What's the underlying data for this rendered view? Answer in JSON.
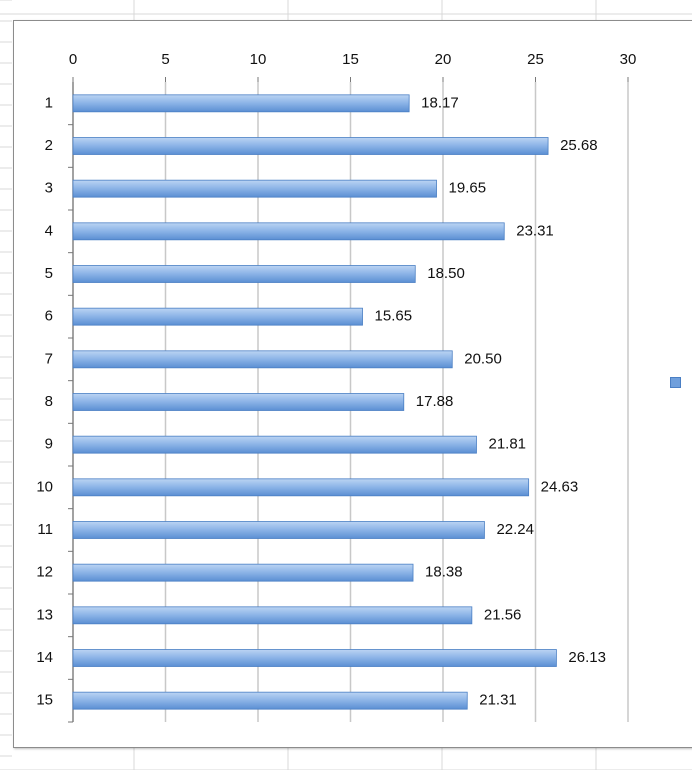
{
  "chart_data": {
    "type": "bar",
    "orientation": "horizontal",
    "categories": [
      "1",
      "2",
      "3",
      "4",
      "5",
      "6",
      "7",
      "8",
      "9",
      "10",
      "11",
      "12",
      "13",
      "14",
      "15"
    ],
    "values": [
      18.17,
      25.68,
      19.65,
      23.31,
      18.5,
      15.65,
      20.5,
      17.88,
      21.81,
      24.63,
      22.24,
      18.38,
      21.56,
      26.13,
      21.31
    ],
    "data_labels": [
      "18.17",
      "25.68",
      "19.65",
      "23.31",
      "18.50",
      "15.65",
      "20.50",
      "17.88",
      "21.81",
      "24.63",
      "22.24",
      "18.38",
      "21.56",
      "26.13",
      "21.31"
    ],
    "x_ticks": [
      "0",
      "5",
      "10",
      "15",
      "20",
      "25",
      "30"
    ],
    "xlim": [
      0,
      30
    ],
    "x_axis_position": "top",
    "grid": true,
    "legend_position": "right",
    "series": [
      {
        "values": [
          18.17,
          25.68,
          19.65,
          23.31,
          18.5,
          15.65,
          20.5,
          17.88,
          21.81,
          24.63,
          22.24,
          18.38,
          21.56,
          26.13,
          21.31
        ]
      }
    ],
    "legend": {
      "label": ""
    },
    "colors": {
      "bar": "#6f9fdc",
      "bar_highlight": "#bcd4f3",
      "bar_edge": "#4a7fc4",
      "grid": "#c8c8c8",
      "sheet_grid": "#d9d9d9"
    }
  }
}
